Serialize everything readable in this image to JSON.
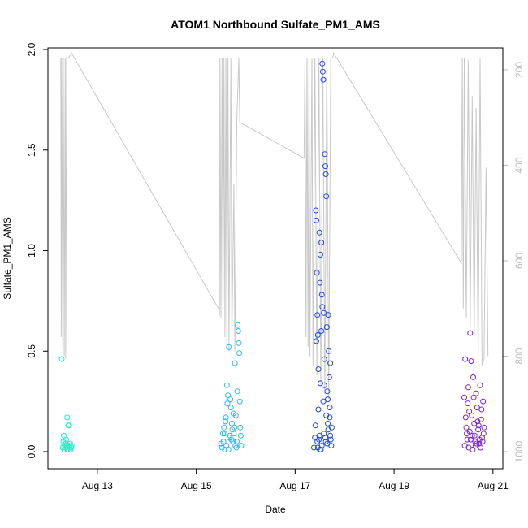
{
  "chart_data": {
    "type": "scatter",
    "title": "ATOM1 Northbound Sulfate_PM1_AMS",
    "xlabel": "Date",
    "ylabel": "Sulfate_PM1_AMS",
    "x_tick_labels": [
      "Aug 13",
      "Aug 15",
      "Aug 17",
      "Aug 19",
      "Aug 21"
    ],
    "x_tick_values": [
      13,
      15,
      17,
      19,
      21
    ],
    "xlim": [
      12.0,
      21.2
    ],
    "y_tick_labels": [
      "0.0",
      "0.5",
      "1.0",
      "1.5",
      "2.0"
    ],
    "y_tick_values": [
      0,
      0.5,
      1.0,
      1.5,
      2.0
    ],
    "ylim": [
      0,
      2.0
    ],
    "y2_tick_labels": [
      "200",
      "400",
      "600",
      "800",
      "1000"
    ],
    "y2_tick_values": [
      200,
      400,
      600,
      800,
      1000
    ],
    "y2lim_top_to_bottom": [
      165,
      1000
    ],
    "secondary_line_color": "#c8c8c8",
    "series": [
      {
        "color": "#19f2c8",
        "points": [
          [
            12.28,
            0.46
          ],
          [
            12.3,
            0.02
          ],
          [
            12.31,
            0.05
          ],
          [
            12.32,
            0.08
          ],
          [
            12.33,
            0.01
          ],
          [
            12.34,
            0.03
          ],
          [
            12.35,
            0.02
          ],
          [
            12.36,
            0.04
          ],
          [
            12.37,
            0.06
          ],
          [
            12.38,
            0.03
          ],
          [
            12.39,
            0.17
          ],
          [
            12.4,
            0.01
          ],
          [
            12.41,
            0.13
          ],
          [
            12.42,
            0.03
          ],
          [
            12.43,
            0.13
          ],
          [
            12.44,
            0.02
          ],
          [
            12.45,
            0.04
          ],
          [
            12.46,
            0.01
          ],
          [
            12.47,
            0.02
          ],
          [
            12.48,
            0.03
          ]
        ]
      },
      {
        "color": "#1ebeff",
        "points": [
          [
            15.5,
            0.04
          ],
          [
            15.52,
            0.02
          ],
          [
            15.54,
            0.09
          ],
          [
            15.56,
            0.12
          ],
          [
            15.58,
            0.01
          ],
          [
            15.6,
            0.17
          ],
          [
            15.62,
            0.33
          ],
          [
            15.64,
            0.28
          ],
          [
            15.66,
            0.52
          ],
          [
            15.68,
            0.08
          ],
          [
            15.7,
            0.22
          ],
          [
            15.72,
            0.14
          ],
          [
            15.74,
            0.05
          ],
          [
            15.76,
            0.09
          ],
          [
            15.78,
            0.44
          ],
          [
            15.8,
            0.18
          ],
          [
            15.82,
            0.05
          ],
          [
            15.84,
            0.63
          ],
          [
            15.85,
            0.6
          ],
          [
            15.86,
            0.54
          ],
          [
            15.87,
            0.49
          ],
          [
            15.88,
            0.25
          ],
          [
            15.89,
            0.12
          ],
          [
            15.9,
            0.08
          ],
          [
            15.91,
            0.03
          ],
          [
            15.55,
            0.05
          ],
          [
            15.61,
            0.03
          ],
          [
            15.67,
            0.07
          ],
          [
            15.73,
            0.11
          ],
          [
            15.79,
            0.03
          ],
          [
            15.83,
            0.3
          ],
          [
            15.69,
            0.26
          ],
          [
            15.75,
            0.19
          ],
          [
            15.59,
            0.15
          ],
          [
            15.65,
            0.01
          ],
          [
            15.71,
            0.06
          ],
          [
            15.77,
            0.12
          ],
          [
            15.81,
            0.02
          ],
          [
            15.63,
            0.24
          ],
          [
            15.57,
            0.09
          ]
        ]
      },
      {
        "color": "#1e46f0",
        "points": [
          [
            17.38,
            0.02
          ],
          [
            17.4,
            0.07
          ],
          [
            17.41,
            0.13
          ],
          [
            17.42,
            1.2
          ],
          [
            17.43,
            1.15
          ],
          [
            17.44,
            0.89
          ],
          [
            17.45,
            0.68
          ],
          [
            17.46,
            0.58
          ],
          [
            17.47,
            0.21
          ],
          [
            17.48,
            0.06
          ],
          [
            17.49,
            1.09
          ],
          [
            17.5,
            0.84
          ],
          [
            17.51,
            0.34
          ],
          [
            17.52,
            0.01
          ],
          [
            17.53,
            1.04
          ],
          [
            17.54,
            0.78
          ],
          [
            17.55,
            1.93
          ],
          [
            17.56,
            1.89
          ],
          [
            17.57,
            1.85
          ],
          [
            17.58,
            0.69
          ],
          [
            17.59,
            0.46
          ],
          [
            17.6,
            1.48
          ],
          [
            17.61,
            1.42
          ],
          [
            17.62,
            1.38
          ],
          [
            17.63,
            1.27
          ],
          [
            17.64,
            0.62
          ],
          [
            17.65,
            0.3
          ],
          [
            17.66,
            0.14
          ],
          [
            17.67,
            0.68
          ],
          [
            17.68,
            0.5
          ],
          [
            17.69,
            0.37
          ],
          [
            17.7,
            0.22
          ],
          [
            17.71,
            0.08
          ],
          [
            17.72,
            0.06
          ],
          [
            17.73,
            0.03
          ],
          [
            17.74,
            0.12
          ],
          [
            17.46,
            0.02
          ],
          [
            17.5,
            0.01
          ],
          [
            17.54,
            0.03
          ],
          [
            17.58,
            0.09
          ],
          [
            17.62,
            0.05
          ],
          [
            17.66,
            0.26
          ],
          [
            17.7,
            0.17
          ],
          [
            17.43,
            0.55
          ],
          [
            17.47,
            0.41
          ],
          [
            17.51,
            0.98
          ],
          [
            17.55,
            0.72
          ],
          [
            17.59,
            0.33
          ],
          [
            17.63,
            0.18
          ],
          [
            17.67,
            0.11
          ],
          [
            17.71,
            0.44
          ],
          [
            17.45,
            0.05
          ],
          [
            17.49,
            0.08
          ],
          [
            17.53,
            0.6
          ],
          [
            17.57,
            0.25
          ],
          [
            17.61,
            0.07
          ],
          [
            17.65,
            0.04
          ]
        ]
      },
      {
        "color": "#7a1ef0",
        "points": [
          [
            20.42,
            0.27
          ],
          [
            20.44,
            0.46
          ],
          [
            20.46,
            0.12
          ],
          [
            20.48,
            0.06
          ],
          [
            20.5,
            0.32
          ],
          [
            20.52,
            0.2
          ],
          [
            20.54,
            0.59
          ],
          [
            20.56,
            0.45
          ],
          [
            20.58,
            0.08
          ],
          [
            20.6,
            0.37
          ],
          [
            20.62,
            0.14
          ],
          [
            20.64,
            0.05
          ],
          [
            20.66,
            0.29
          ],
          [
            20.68,
            0.22
          ],
          [
            20.7,
            0.11
          ],
          [
            20.72,
            0.04
          ],
          [
            20.74,
            0.33
          ],
          [
            20.76,
            0.16
          ],
          [
            20.78,
            0.07
          ],
          [
            20.8,
            0.25
          ],
          [
            20.82,
            0.12
          ],
          [
            20.43,
            0.03
          ],
          [
            20.47,
            0.09
          ],
          [
            20.51,
            0.02
          ],
          [
            20.55,
            0.06
          ],
          [
            20.59,
            0.01
          ],
          [
            20.63,
            0.08
          ],
          [
            20.67,
            0.04
          ],
          [
            20.71,
            0.13
          ],
          [
            20.75,
            0.02
          ],
          [
            20.79,
            0.05
          ],
          [
            20.45,
            0.17
          ],
          [
            20.49,
            0.24
          ],
          [
            20.53,
            0.1
          ],
          [
            20.57,
            0.18
          ],
          [
            20.61,
            0.27
          ],
          [
            20.65,
            0.03
          ],
          [
            20.69,
            0.15
          ],
          [
            20.73,
            0.06
          ],
          [
            20.77,
            0.21
          ],
          [
            20.81,
            0.09
          ]
        ]
      }
    ],
    "secondary_line": [
      [
        12.26,
        175
      ],
      [
        12.27,
        760
      ],
      [
        12.28,
        175
      ],
      [
        12.3,
        780
      ],
      [
        12.31,
        175
      ],
      [
        12.33,
        800
      ],
      [
        12.35,
        175
      ],
      [
        12.36,
        805
      ],
      [
        12.38,
        175
      ],
      [
        12.42,
        175
      ],
      [
        12.48,
        165
      ],
      [
        15.45,
        700
      ],
      [
        15.47,
        715
      ],
      [
        15.48,
        175
      ],
      [
        15.5,
        720
      ],
      [
        15.52,
        175
      ],
      [
        15.54,
        740
      ],
      [
        15.56,
        175
      ],
      [
        15.58,
        760
      ],
      [
        15.6,
        175
      ],
      [
        15.62,
        780
      ],
      [
        15.64,
        175
      ],
      [
        15.66,
        790
      ],
      [
        15.7,
        175
      ],
      [
        15.72,
        770
      ],
      [
        15.76,
        440
      ],
      [
        15.78,
        790
      ],
      [
        15.82,
        310
      ],
      [
        15.86,
        175
      ],
      [
        15.88,
        310
      ],
      [
        17.18,
        385
      ],
      [
        17.2,
        175
      ],
      [
        17.22,
        760
      ],
      [
        17.24,
        175
      ],
      [
        17.26,
        780
      ],
      [
        17.28,
        175
      ],
      [
        17.3,
        800
      ],
      [
        17.34,
        175
      ],
      [
        17.36,
        820
      ],
      [
        17.4,
        175
      ],
      [
        17.44,
        840
      ],
      [
        17.48,
        175
      ],
      [
        17.52,
        860
      ],
      [
        17.56,
        175
      ],
      [
        17.6,
        880
      ],
      [
        17.64,
        175
      ],
      [
        17.68,
        890
      ],
      [
        17.72,
        175
      ],
      [
        17.76,
        175
      ],
      [
        17.78,
        165
      ],
      [
        20.36,
        605
      ],
      [
        20.38,
        175
      ],
      [
        20.4,
        700
      ],
      [
        20.42,
        175
      ],
      [
        20.46,
        720
      ],
      [
        20.5,
        180
      ],
      [
        20.54,
        740
      ],
      [
        20.58,
        255
      ],
      [
        20.62,
        760
      ],
      [
        20.66,
        280
      ],
      [
        20.7,
        805
      ],
      [
        20.74,
        175
      ],
      [
        20.78,
        820
      ],
      [
        20.82,
        805
      ],
      [
        20.86,
        405
      ],
      [
        20.9,
        800
      ]
    ]
  }
}
